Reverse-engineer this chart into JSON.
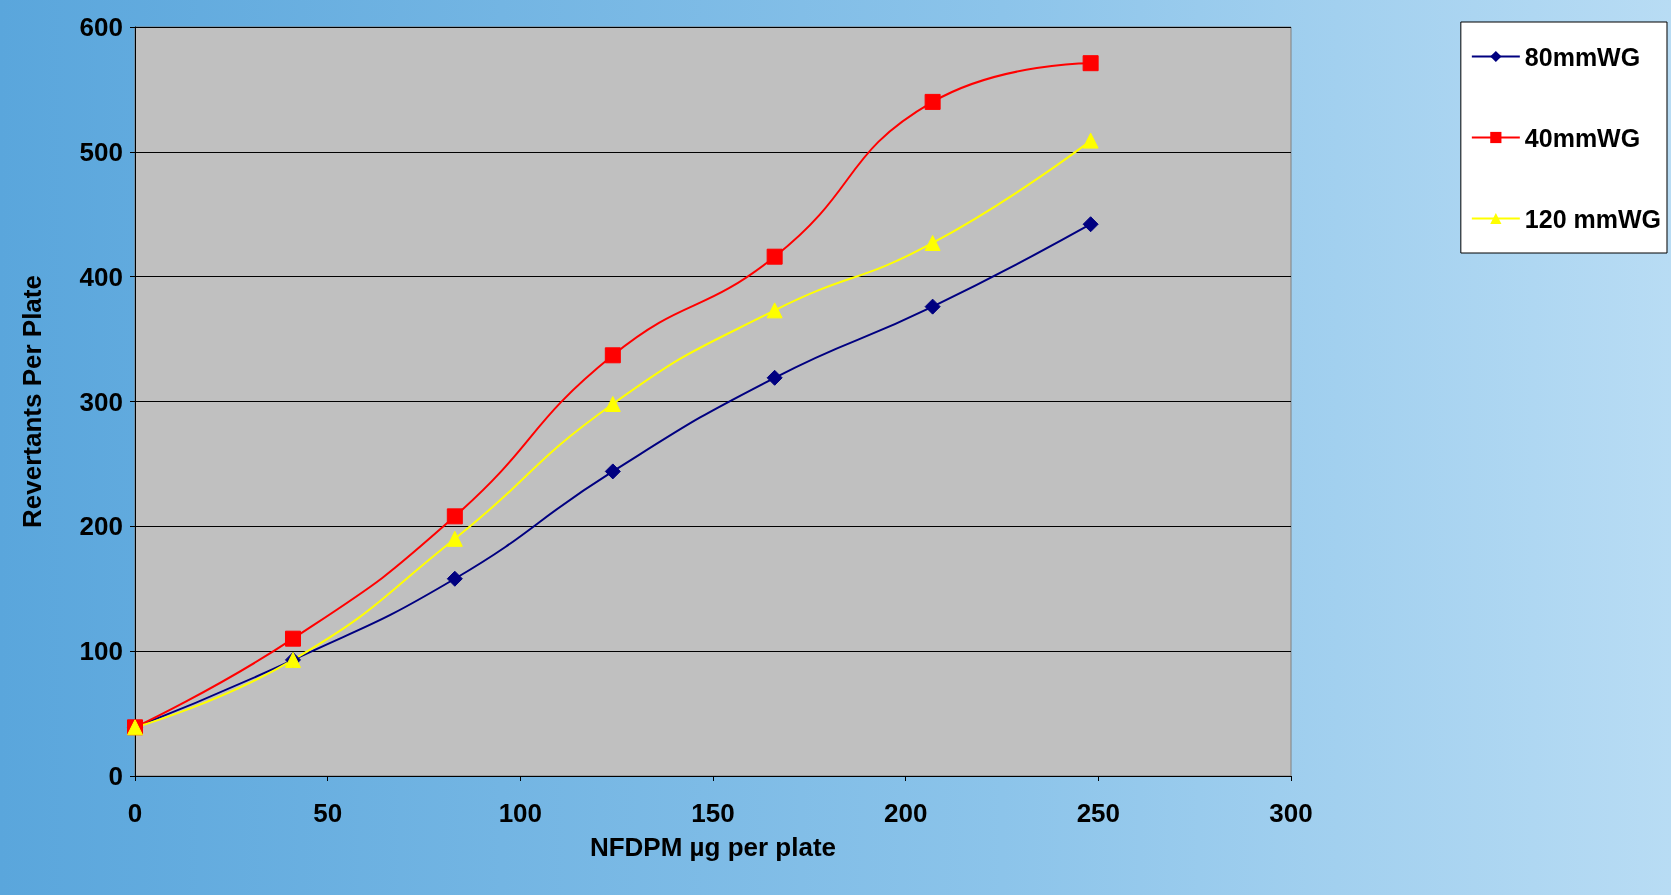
{
  "chart_data": {
    "type": "line",
    "xlabel": "NFDPM µg per plate",
    "ylabel": "Revertants Per Plate",
    "x": [
      0,
      41,
      83,
      124,
      166,
      207,
      248
    ],
    "series": [
      {
        "name": "80mmWG",
        "color": "#000080",
        "marker": "diamond",
        "values": [
          39,
          93,
          158,
          244,
          319,
          376,
          442
        ]
      },
      {
        "name": "40mmWG",
        "color": "#ff0000",
        "marker": "square",
        "values": [
          39,
          110,
          208,
          337,
          416,
          540,
          571
        ]
      },
      {
        "name": "120 mmWG",
        "color": "#ffff00",
        "marker": "triangle",
        "values": [
          39,
          93,
          190,
          298,
          373,
          427,
          509
        ]
      }
    ],
    "xlim": [
      0,
      300
    ],
    "xticks": [
      0,
      50,
      100,
      150,
      200,
      250,
      300
    ],
    "ylim": [
      0,
      600
    ],
    "yticks": [
      0,
      100,
      200,
      300,
      400,
      500,
      600
    ],
    "grid": "y",
    "legend": "top right",
    "line_style": "solid"
  }
}
